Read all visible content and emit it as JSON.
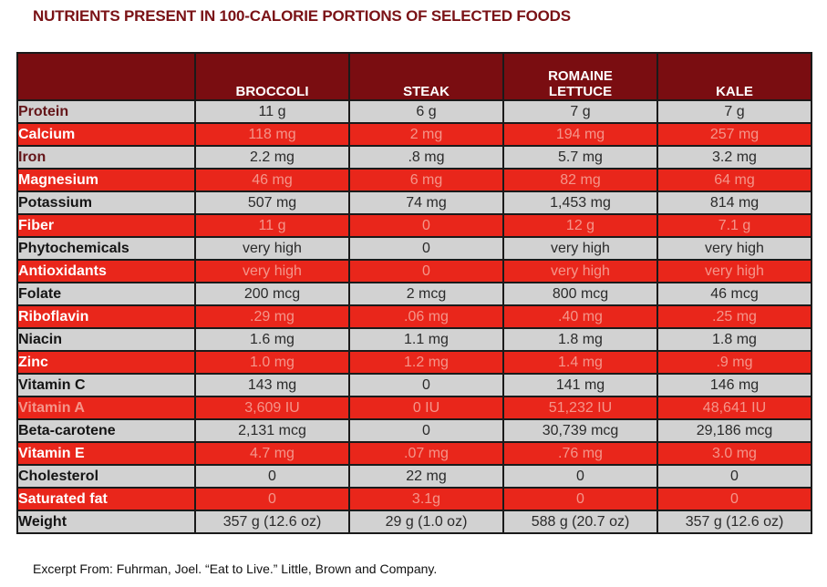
{
  "title": "NUTRIENTS PRESENT IN 100-CALORIE PORTIONS OF SELECTED FOODS",
  "footer": "Excerpt From: Fuhrman, Joel. “Eat to Live.” Little, Brown and Company.",
  "colors": {
    "title_text": "#7a1216",
    "header_bg": "#7a0d11",
    "header_text": "#ffffff",
    "red_row_bg": "#e9261b",
    "gray_row_bg": "#d2d2d2",
    "red_row_text": "#f4958a",
    "gray_row_text": "#2a2a2a",
    "maroon_label": "#641519",
    "border": "#1a1a1a"
  },
  "chart_data": {
    "type": "table",
    "title": "NUTRIENTS PRESENT IN 100-CALORIE PORTIONS OF SELECTED FOODS",
    "columns": [
      "",
      "BROCCOLI",
      "STEAK",
      "ROMAINE LETTUCE",
      "KALE"
    ],
    "rows": [
      {
        "label": "Protein",
        "values": [
          "11 g",
          "6 g",
          "7 g",
          "7 g"
        ],
        "row_bg": "gray",
        "label_color": "maroon"
      },
      {
        "label": "Calcium",
        "values": [
          "118 mg",
          "2 mg",
          "194 mg",
          "257 mg"
        ],
        "row_bg": "red",
        "label_color": "white"
      },
      {
        "label": "Iron",
        "values": [
          "2.2 mg",
          ".8 mg",
          "5.7 mg",
          "3.2 mg"
        ],
        "row_bg": "gray",
        "label_color": "maroon"
      },
      {
        "label": "Magnesium",
        "values": [
          "46 mg",
          "6 mg",
          "82 mg",
          "64 mg"
        ],
        "row_bg": "red",
        "label_color": "white"
      },
      {
        "label": "Potassium",
        "values": [
          "507 mg",
          "74 mg",
          "1,453 mg",
          "814 mg"
        ],
        "row_bg": "gray",
        "label_color": "black"
      },
      {
        "label": "Fiber",
        "values": [
          "11 g",
          "0",
          "12 g",
          "7.1 g"
        ],
        "row_bg": "red",
        "label_color": "white"
      },
      {
        "label": "Phytochemicals",
        "values": [
          "very high",
          "0",
          "very high",
          "very high"
        ],
        "row_bg": "gray",
        "label_color": "black"
      },
      {
        "label": "Antioxidants",
        "values": [
          "very high",
          "0",
          "very high",
          "very high"
        ],
        "row_bg": "red",
        "label_color": "white"
      },
      {
        "label": "Folate",
        "values": [
          "200 mcg",
          "2 mcg",
          "800 mcg",
          "46 mcg"
        ],
        "row_bg": "gray",
        "label_color": "black"
      },
      {
        "label": "Riboflavin",
        "values": [
          ".29 mg",
          ".06 mg",
          ".40 mg",
          ".25 mg"
        ],
        "row_bg": "red",
        "label_color": "white"
      },
      {
        "label": "Niacin",
        "values": [
          "1.6 mg",
          "1.1 mg",
          "1.8 mg",
          "1.8 mg"
        ],
        "row_bg": "gray",
        "label_color": "black"
      },
      {
        "label": "Zinc",
        "values": [
          "1.0 mg",
          "1.2 mg",
          "1.4 mg",
          ".9 mg"
        ],
        "row_bg": "red",
        "label_color": "white"
      },
      {
        "label": "Vitamin C",
        "values": [
          "143 mg",
          "0",
          "141 mg",
          "146 mg"
        ],
        "row_bg": "gray",
        "label_color": "black"
      },
      {
        "label": "Vitamin A",
        "values": [
          "3,609 IU",
          "0 IU",
          "51,232 IU",
          "48,641 IU"
        ],
        "row_bg": "red",
        "label_color": "salmon"
      },
      {
        "label": "Beta-carotene",
        "values": [
          "2,131 mcg",
          "0",
          "30,739 mcg",
          "29,186 mcg"
        ],
        "row_bg": "gray",
        "label_color": "black"
      },
      {
        "label": "Vitamin E",
        "values": [
          "4.7 mg",
          ".07 mg",
          ".76 mg",
          "3.0 mg"
        ],
        "row_bg": "red",
        "label_color": "white"
      },
      {
        "label": "Cholesterol",
        "values": [
          "0",
          "22 mg",
          "0",
          "0"
        ],
        "row_bg": "gray",
        "label_color": "black"
      },
      {
        "label": "Saturated fat",
        "values": [
          "0",
          "3.1g",
          "0",
          "0"
        ],
        "row_bg": "red",
        "label_color": "white"
      },
      {
        "label": "Weight",
        "values": [
          "357 g (12.6 oz)",
          "29 g (1.0 oz)",
          "588 g (20.7 oz)",
          "357 g (12.6 oz)"
        ],
        "row_bg": "gray",
        "label_color": "black"
      }
    ]
  }
}
